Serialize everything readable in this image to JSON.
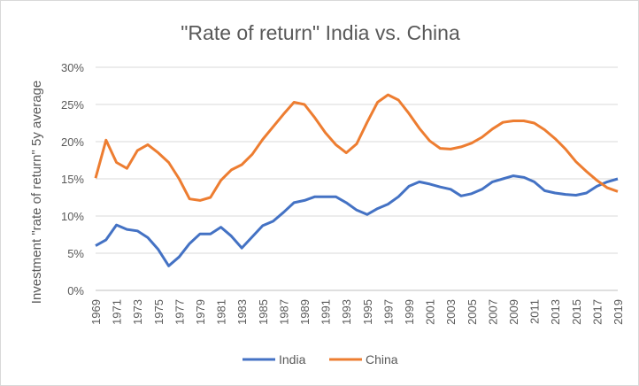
{
  "chart_data": {
    "type": "line",
    "title": "\"Rate of return\" India vs. China",
    "xlabel": "",
    "ylabel": "Investment  \"rate of return\" 5y average",
    "ylim": [
      0,
      0.3
    ],
    "y_ticks": [
      "0%",
      "5%",
      "10%",
      "15%",
      "20%",
      "25%",
      "30%"
    ],
    "x_ticks": [
      "1969",
      "1971",
      "1973",
      "1975",
      "1977",
      "1979",
      "1981",
      "1983",
      "1985",
      "1987",
      "1989",
      "1991",
      "1993",
      "1995",
      "1997",
      "1999",
      "2001",
      "2003",
      "2005",
      "2007",
      "2009",
      "2011",
      "2013",
      "2015",
      "2017",
      "2019"
    ],
    "grid": true,
    "legend": "bottom",
    "x": [
      1969,
      1970,
      1971,
      1972,
      1973,
      1974,
      1975,
      1976,
      1977,
      1978,
      1979,
      1980,
      1981,
      1982,
      1983,
      1984,
      1985,
      1986,
      1987,
      1988,
      1989,
      1990,
      1991,
      1992,
      1993,
      1994,
      1995,
      1996,
      1997,
      1998,
      1999,
      2000,
      2001,
      2002,
      2003,
      2004,
      2005,
      2006,
      2007,
      2008,
      2009,
      2010,
      2011,
      2012,
      2013,
      2014,
      2015,
      2016,
      2017,
      2018,
      2019
    ],
    "series": [
      {
        "name": "India",
        "color": "#4472c4",
        "values": [
          0.06,
          0.068,
          0.088,
          0.082,
          0.08,
          0.071,
          0.055,
          0.033,
          0.045,
          0.063,
          0.076,
          0.076,
          0.085,
          0.073,
          0.057,
          0.072,
          0.087,
          0.093,
          0.105,
          0.118,
          0.121,
          0.126,
          0.126,
          0.126,
          0.118,
          0.108,
          0.102,
          0.11,
          0.116,
          0.126,
          0.14,
          0.146,
          0.143,
          0.139,
          0.136,
          0.127,
          0.13,
          0.136,
          0.146,
          0.15,
          0.154,
          0.152,
          0.146,
          0.134,
          0.131,
          0.129,
          0.128,
          0.131,
          0.14,
          0.146,
          0.15
        ]
      },
      {
        "name": "China",
        "color": "#ed7d31",
        "values": [
          0.151,
          0.202,
          0.172,
          0.164,
          0.188,
          0.196,
          0.185,
          0.172,
          0.15,
          0.123,
          0.121,
          0.125,
          0.148,
          0.162,
          0.169,
          0.183,
          0.203,
          0.22,
          0.237,
          0.253,
          0.25,
          0.232,
          0.212,
          0.196,
          0.185,
          0.197,
          0.226,
          0.253,
          0.263,
          0.256,
          0.238,
          0.218,
          0.201,
          0.191,
          0.19,
          0.193,
          0.198,
          0.206,
          0.217,
          0.226,
          0.228,
          0.228,
          0.225,
          0.216,
          0.204,
          0.19,
          0.173,
          0.16,
          0.148,
          0.138,
          0.133
        ]
      }
    ]
  }
}
